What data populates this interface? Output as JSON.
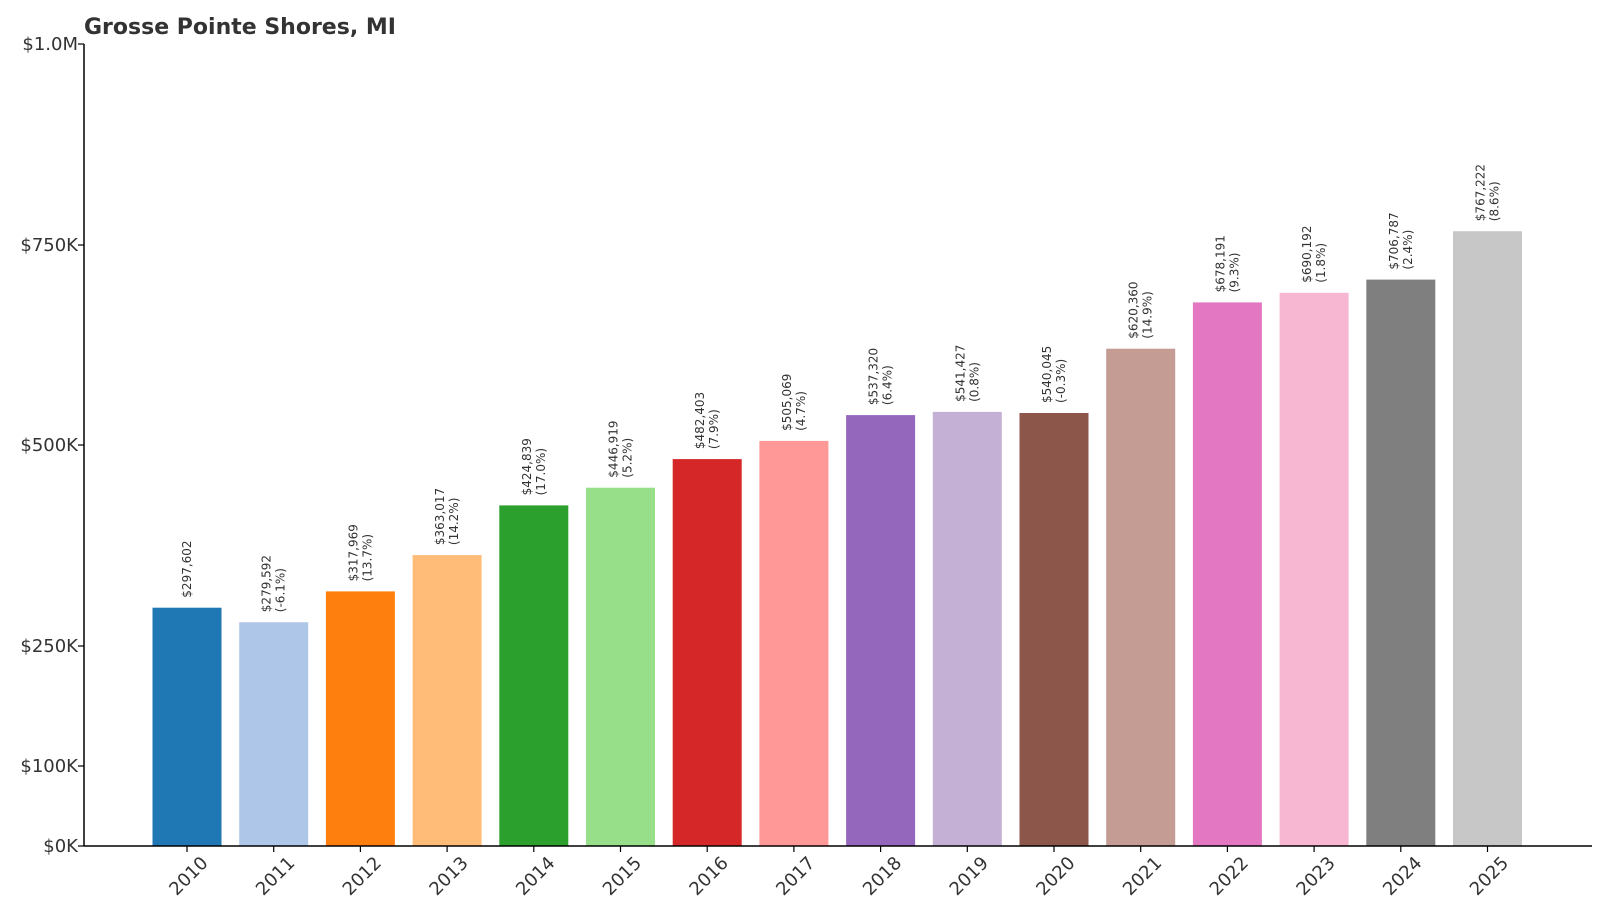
{
  "chart_data": {
    "type": "bar",
    "title": "Grosse Pointe Shores, MI",
    "xlabel": "",
    "ylabel": "",
    "categories": [
      "2010",
      "2011",
      "2012",
      "2013",
      "2014",
      "2015",
      "2016",
      "2017",
      "2018",
      "2019",
      "2020",
      "2021",
      "2022",
      "2023",
      "2024",
      "2025"
    ],
    "values": [
      297602,
      279592,
      317969,
      363017,
      424839,
      446919,
      482403,
      505069,
      537320,
      541427,
      540045,
      620360,
      678191,
      690192,
      706787,
      767222
    ],
    "value_labels": [
      "$297,602",
      "$279,592",
      "$317,969",
      "$363,017",
      "$424,839",
      "$446,919",
      "$482,403",
      "$505,069",
      "$537,320",
      "$541,427",
      "$540,045",
      "$620,360",
      "$678,191",
      "$690,192",
      "$706,787",
      "$767,222"
    ],
    "change_labels": [
      "",
      "(-6.1%)",
      "(13.7%)",
      "(14.2%)",
      "(17.0%)",
      "(5.2%)",
      "(7.9%)",
      "(4.7%)",
      "(6.4%)",
      "(0.8%)",
      "(-0.3%)",
      "(14.9%)",
      "(9.3%)",
      "(1.8%)",
      "(2.4%)",
      "(8.6%)"
    ],
    "colors": [
      "#1f77b4",
      "#aec7e8",
      "#ff7f0e",
      "#ffbb78",
      "#2ca02c",
      "#98df8a",
      "#d62728",
      "#ff9896",
      "#9467bd",
      "#c5b0d5",
      "#8c564b",
      "#c49c94",
      "#e377c2",
      "#f7b6d2",
      "#7f7f7f",
      "#c7c7c7"
    ],
    "ylim": [
      0,
      1000000
    ],
    "y_ticks": [
      {
        "value": 0,
        "label": "$0K"
      },
      {
        "value": 100000,
        "label": "$100K"
      },
      {
        "value": 250000,
        "label": "$250K"
      },
      {
        "value": 500000,
        "label": "$500K"
      },
      {
        "value": 750000,
        "label": "$750K"
      },
      {
        "value": 1000000,
        "label": "$1.0M"
      }
    ],
    "grid": false,
    "legend": "none"
  }
}
